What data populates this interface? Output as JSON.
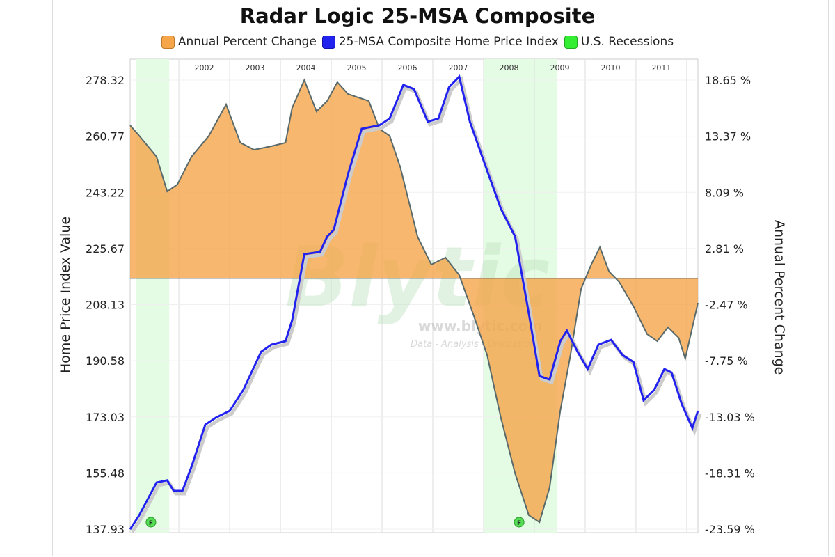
{
  "chart_data": {
    "type": "line",
    "title": "Radar Logic 25-MSA Composite",
    "legend": [
      {
        "label": "Annual Percent Change",
        "color": "#f5a54a"
      },
      {
        "label": "25-MSA Composite Home Price Index",
        "color": "#2222ee"
      },
      {
        "label": "U.S. Recessions",
        "color": "#33ee33"
      }
    ],
    "legend_position": "top",
    "ylabel_left": "Home Price Index Value",
    "ylabel_right": "Annual Percent Change",
    "left_ticks": [
      "137.93",
      "155.48",
      "173.03",
      "190.58",
      "208.13",
      "225.67",
      "243.22",
      "260.77",
      "278.32"
    ],
    "right_ticks": [
      "-23.59 %",
      "-18.31 %",
      "-13.03 %",
      "-7.75 %",
      "-2.47 %",
      "2.81 %",
      "8.09 %",
      "13.37 %",
      "18.65 %"
    ],
    "ylim_left": [
      137.93,
      278.32
    ],
    "ylim_right": [
      -23.59,
      18.65
    ],
    "xlim": [
      2001.04,
      2012.22
    ],
    "x_ticks": [
      "2002",
      "2003",
      "2004",
      "2005",
      "2006",
      "2007",
      "2008",
      "2009",
      "2010",
      "2011"
    ],
    "recessions": [
      [
        2001.15,
        2001.81
      ],
      [
        2008.0,
        2009.44
      ]
    ],
    "flag_label": "F",
    "flags": [
      2001.45,
      2008.7
    ],
    "watermark": {
      "logo": "Blytic",
      "url": "www.blytic.com",
      "tagline": "Data - Analysis - Discussion"
    },
    "series": [
      {
        "name": "25-MSA Composite Home Price Index",
        "axis": "left",
        "x": [
          2001.04,
          2001.22,
          2001.56,
          2001.77,
          2001.9,
          2002.07,
          2002.25,
          2002.52,
          2002.73,
          2003.0,
          2003.27,
          2003.62,
          2003.82,
          2004.1,
          2004.23,
          2004.47,
          2004.78,
          2004.92,
          2005.05,
          2005.33,
          2005.6,
          2005.95,
          2006.15,
          2006.42,
          2006.63,
          2006.9,
          2007.11,
          2007.32,
          2007.52,
          2007.73,
          2008.07,
          2008.34,
          2008.62,
          2008.89,
          2009.1,
          2009.3,
          2009.51,
          2009.64,
          2009.85,
          2010.05,
          2010.26,
          2010.51,
          2010.74,
          2010.95,
          2011.15,
          2011.36,
          2011.56,
          2011.7,
          2011.9,
          2012.11,
          2012.22
        ],
        "y": [
          137.9,
          142.3,
          152.5,
          153.2,
          149.9,
          149.9,
          157.5,
          170.6,
          172.8,
          174.9,
          181.5,
          193.4,
          195.6,
          196.7,
          203.2,
          223.9,
          224.6,
          229.4,
          231.5,
          248.9,
          263.1,
          264.2,
          266.3,
          276.8,
          275.5,
          265.3,
          266.3,
          276.1,
          279.4,
          265.3,
          250.0,
          238.1,
          229.4,
          205.4,
          185.8,
          184.7,
          196.7,
          200.0,
          193.4,
          188.0,
          195.6,
          197.1,
          192.3,
          190.2,
          178.2,
          181.5,
          188.0,
          186.9,
          177.1,
          169.5,
          174.9
        ]
      },
      {
        "name": "Annual Percent Change",
        "axis": "right",
        "x": [
          2001.04,
          2001.22,
          2001.56,
          2001.77,
          2001.97,
          2002.25,
          2002.59,
          2002.93,
          2003.21,
          2003.48,
          2003.82,
          2004.1,
          2004.23,
          2004.47,
          2004.71,
          2004.92,
          2005.12,
          2005.33,
          2005.74,
          2005.95,
          2006.15,
          2006.36,
          2006.7,
          2006.97,
          2007.25,
          2007.52,
          2007.79,
          2008.07,
          2008.34,
          2008.62,
          2008.89,
          2009.1,
          2009.3,
          2009.51,
          2009.71,
          2009.92,
          2010.12,
          2010.29,
          2010.47,
          2010.67,
          2010.95,
          2011.22,
          2011.42,
          2011.63,
          2011.84,
          2011.97,
          2012.22
        ],
        "y": [
          14.39,
          13.41,
          11.45,
          8.17,
          8.83,
          11.45,
          13.41,
          16.36,
          12.76,
          12.1,
          12.43,
          12.76,
          16.03,
          18.65,
          15.7,
          16.68,
          18.45,
          17.34,
          16.68,
          14.06,
          13.41,
          10.46,
          3.92,
          1.3,
          1.95,
          0.31,
          -3.29,
          -7.22,
          -13.11,
          -18.35,
          -22.28,
          -22.94,
          -19.66,
          -12.46,
          -7.22,
          -0.99,
          1.3,
          2.93,
          0.64,
          -0.34,
          -2.63,
          -5.25,
          -5.91,
          -4.6,
          -5.58,
          -7.55,
          -2.31
        ]
      }
    ]
  }
}
